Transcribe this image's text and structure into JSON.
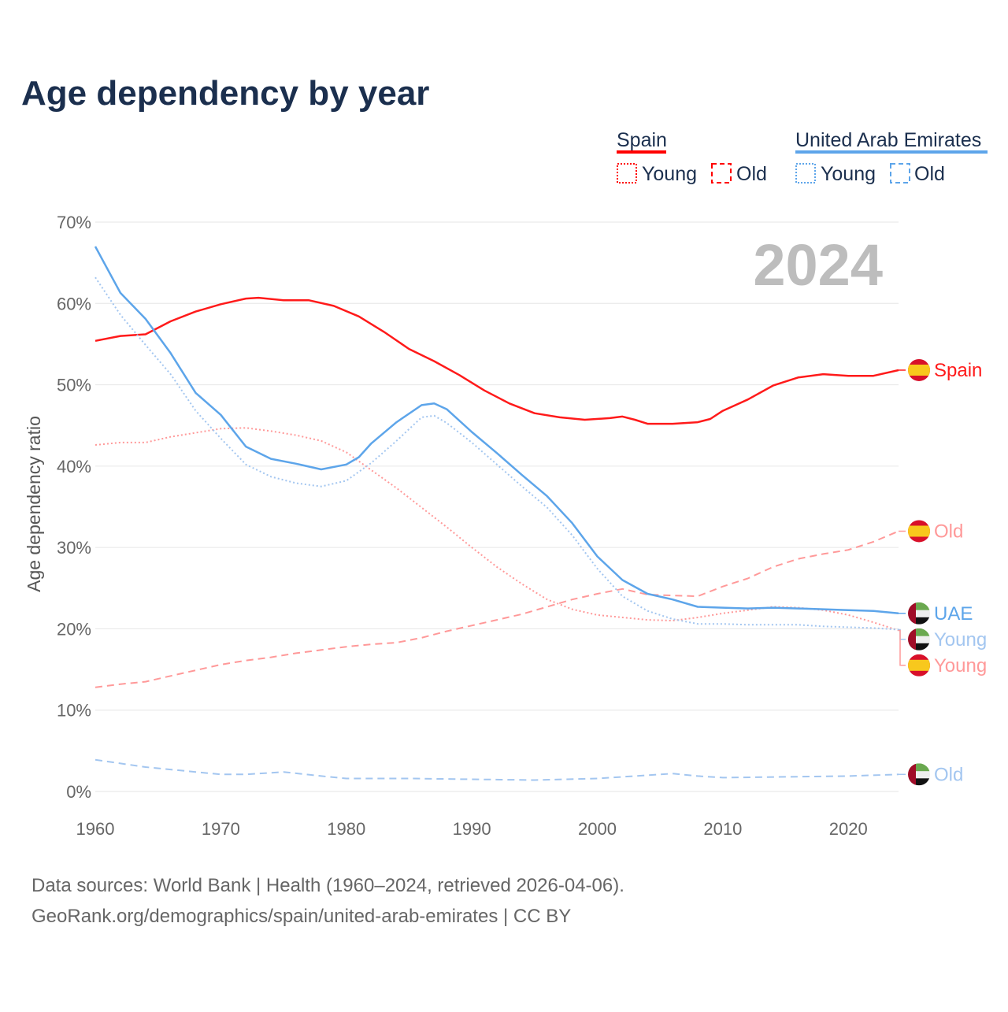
{
  "chart_data": {
    "type": "line",
    "title": "Age dependency by year",
    "ylabel": "Age dependency ratio",
    "xlabel": "",
    "xlim": [
      1960,
      2024
    ],
    "ylim": [
      0,
      70
    ],
    "yticks": [
      0,
      10,
      20,
      30,
      40,
      50,
      60,
      70
    ],
    "ytick_labels": [
      "0%",
      "10%",
      "20%",
      "30%",
      "40%",
      "50%",
      "60%",
      "70%"
    ],
    "xticks": [
      1960,
      1970,
      1980,
      1990,
      2000,
      2010,
      2020
    ],
    "xtick_labels": [
      "1960",
      "1970",
      "1980",
      "1990",
      "2000",
      "2010",
      "2020"
    ],
    "grid": true,
    "year_watermark": "2024",
    "legend": {
      "placement": "top-right",
      "groups": [
        {
          "name": "Spain",
          "color": "#ff0000",
          "items": [
            {
              "label": "Young",
              "style": "dotted"
            },
            {
              "label": "Old",
              "style": "dashed"
            }
          ]
        },
        {
          "name": "United Arab Emirates",
          "color": "#5da5ea",
          "items": [
            {
              "label": "Young",
              "style": "dotted"
            },
            {
              "label": "Old",
              "style": "dashed"
            }
          ]
        }
      ]
    },
    "series": [
      {
        "name": "Spain",
        "end_label": "Spain",
        "country": "spain",
        "color": "#ff1a1a",
        "style": "solid",
        "x": [
          1960,
          1962,
          1964,
          1966,
          1968,
          1970,
          1972,
          1973,
          1975,
          1977,
          1979,
          1981,
          1983,
          1985,
          1987,
          1989,
          1991,
          1993,
          1995,
          1997,
          1999,
          2001,
          2002,
          2003,
          2004,
          2006,
          2008,
          2009,
          2010,
          2012,
          2014,
          2016,
          2018,
          2020,
          2022,
          2024
        ],
        "y": [
          55.4,
          56.0,
          56.2,
          57.8,
          59.0,
          59.9,
          60.6,
          60.7,
          60.4,
          60.4,
          59.7,
          58.4,
          56.5,
          54.4,
          52.9,
          51.2,
          49.3,
          47.7,
          46.5,
          46.0,
          45.7,
          45.9,
          46.1,
          45.7,
          45.2,
          45.2,
          45.4,
          45.8,
          46.8,
          48.2,
          49.9,
          50.9,
          51.3,
          51.1,
          51.1,
          51.8
        ]
      },
      {
        "name": "Spain Old",
        "end_label": "Old",
        "country": "spain",
        "color": "#ff9999",
        "style": "dashed",
        "x": [
          1960,
          1962,
          1964,
          1966,
          1968,
          1970,
          1972,
          1974,
          1976,
          1978,
          1980,
          1982,
          1984,
          1986,
          1988,
          1990,
          1992,
          1994,
          1996,
          1998,
          2000,
          2002,
          2004,
          2006,
          2008,
          2010,
          2012,
          2014,
          2016,
          2018,
          2020,
          2022,
          2024
        ],
        "y": [
          12.8,
          13.2,
          13.5,
          14.2,
          14.9,
          15.6,
          16.1,
          16.5,
          17.0,
          17.4,
          17.8,
          18.1,
          18.3,
          18.9,
          19.7,
          20.4,
          21.1,
          21.8,
          22.7,
          23.6,
          24.3,
          24.9,
          24.2,
          24.1,
          24.0,
          25.2,
          26.2,
          27.6,
          28.6,
          29.2,
          29.7,
          30.7,
          32.0
        ]
      },
      {
        "name": "Spain Young",
        "end_label": "Young",
        "country": "spain",
        "color": "#ff9999",
        "style": "dotted",
        "x": [
          1960,
          1962,
          1964,
          1966,
          1968,
          1970,
          1972,
          1974,
          1976,
          1978,
          1980,
          1982,
          1984,
          1986,
          1988,
          1990,
          1992,
          1994,
          1996,
          1998,
          2000,
          2002,
          2004,
          2006,
          2008,
          2010,
          2012,
          2014,
          2016,
          2018,
          2020,
          2022,
          2024
        ],
        "y": [
          42.6,
          42.9,
          42.9,
          43.6,
          44.1,
          44.6,
          44.7,
          44.3,
          43.8,
          43.1,
          41.7,
          39.5,
          37.3,
          34.9,
          32.5,
          30.0,
          27.6,
          25.5,
          23.6,
          22.4,
          21.7,
          21.4,
          21.1,
          21.0,
          21.4,
          21.9,
          22.3,
          22.7,
          22.6,
          22.3,
          21.7,
          20.8,
          19.8
        ]
      },
      {
        "name": "United Arab Emirates",
        "end_label": "UAE",
        "country": "uae",
        "color": "#5da5ea",
        "style": "solid",
        "x": [
          1960,
          1962,
          1964,
          1966,
          1968,
          1970,
          1972,
          1974,
          1976,
          1978,
          1980,
          1981,
          1982,
          1984,
          1986,
          1987,
          1988,
          1990,
          1992,
          1994,
          1996,
          1998,
          2000,
          2002,
          2004,
          2006,
          2008,
          2010,
          2012,
          2014,
          2016,
          2018,
          2020,
          2022,
          2024
        ],
        "y": [
          67.0,
          61.3,
          58.1,
          53.9,
          49.0,
          46.3,
          42.4,
          40.9,
          40.3,
          39.6,
          40.2,
          41.1,
          42.8,
          45.4,
          47.5,
          47.7,
          47.0,
          44.2,
          41.6,
          38.9,
          36.3,
          33.0,
          28.9,
          26.0,
          24.3,
          23.6,
          22.7,
          22.6,
          22.5,
          22.6,
          22.5,
          22.4,
          22.3,
          22.2,
          21.9
        ]
      },
      {
        "name": "United Arab Emirates Young",
        "end_label": "Young",
        "country": "uae",
        "color": "#a3c6f0",
        "style": "dotted",
        "x": [
          1960,
          1962,
          1964,
          1966,
          1968,
          1970,
          1972,
          1974,
          1976,
          1978,
          1980,
          1982,
          1984,
          1986,
          1987,
          1988,
          1990,
          1992,
          1994,
          1996,
          1998,
          2000,
          2002,
          2004,
          2006,
          2008,
          2010,
          2012,
          2014,
          2016,
          2018,
          2020,
          2022,
          2024
        ],
        "y": [
          63.2,
          58.6,
          54.9,
          51.3,
          46.8,
          43.4,
          40.2,
          38.7,
          37.9,
          37.5,
          38.2,
          40.4,
          43.1,
          46.0,
          46.2,
          45.3,
          42.9,
          40.2,
          37.5,
          34.9,
          31.5,
          27.4,
          24.0,
          22.2,
          21.2,
          20.6,
          20.6,
          20.5,
          20.5,
          20.5,
          20.3,
          20.2,
          20.1,
          19.9
        ]
      },
      {
        "name": "United Arab Emirates Old",
        "end_label": "Old",
        "country": "uae",
        "color": "#a3c6f0",
        "style": "dashed",
        "x": [
          1960,
          1964,
          1968,
          1970,
          1972,
          1975,
          1978,
          1980,
          1985,
          1990,
          1995,
          2000,
          2003,
          2006,
          2008,
          2010,
          2015,
          2020,
          2024
        ],
        "y": [
          3.9,
          3.0,
          2.4,
          2.1,
          2.1,
          2.4,
          1.9,
          1.6,
          1.6,
          1.5,
          1.4,
          1.6,
          1.9,
          2.2,
          1.9,
          1.7,
          1.8,
          1.9,
          2.1
        ]
      }
    ]
  },
  "footer": {
    "line1": "Data sources: World Bank | Health (1960–2024, retrieved 2026-04-06).",
    "line2": "GeoRank.org/demographics/spain/united-arab-emirates | CC BY"
  }
}
